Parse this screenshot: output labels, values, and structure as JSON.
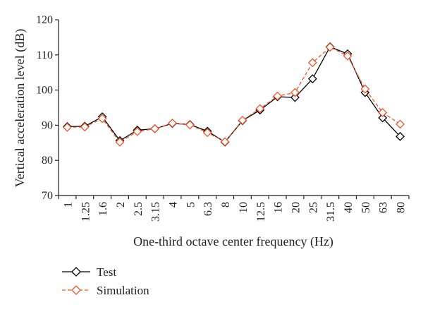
{
  "chart_data": {
    "type": "line",
    "title": "",
    "xlabel": "One-third octave center frequency (Hz)",
    "ylabel": "Vertical acceleration level (dB)",
    "ylim": [
      70,
      120
    ],
    "yticks": [
      "70",
      "80",
      "90",
      "100",
      "110",
      "120"
    ],
    "grid": false,
    "legend_position": "bottom-left",
    "categories": [
      "1",
      "1.25",
      "1.6",
      "2",
      "2.5",
      "3.15",
      "4",
      "5",
      "6.3",
      "8",
      "10",
      "12.5",
      "16",
      "20",
      "25",
      "31.5",
      "40",
      "50",
      "63",
      "80"
    ],
    "series": [
      {
        "name": "Test",
        "color": "#000000",
        "marker": "diamond",
        "dashed": false,
        "values": [
          89.6,
          89.7,
          92.4,
          85.6,
          88.6,
          89.0,
          90.5,
          90.2,
          88.3,
          85.2,
          91.3,
          94.3,
          98.1,
          97.9,
          103.2,
          112.3,
          110.3,
          99.3,
          92.1,
          86.8
        ]
      },
      {
        "name": "Simulation",
        "color": "#f0532b",
        "marker": "diamond",
        "dashed": true,
        "values": [
          89.4,
          89.5,
          91.9,
          85.2,
          88.2,
          89.0,
          90.6,
          90.1,
          87.9,
          85.3,
          91.4,
          94.7,
          98.3,
          99.3,
          107.8,
          112.2,
          109.7,
          100.3,
          93.6,
          90.3
        ]
      }
    ]
  }
}
